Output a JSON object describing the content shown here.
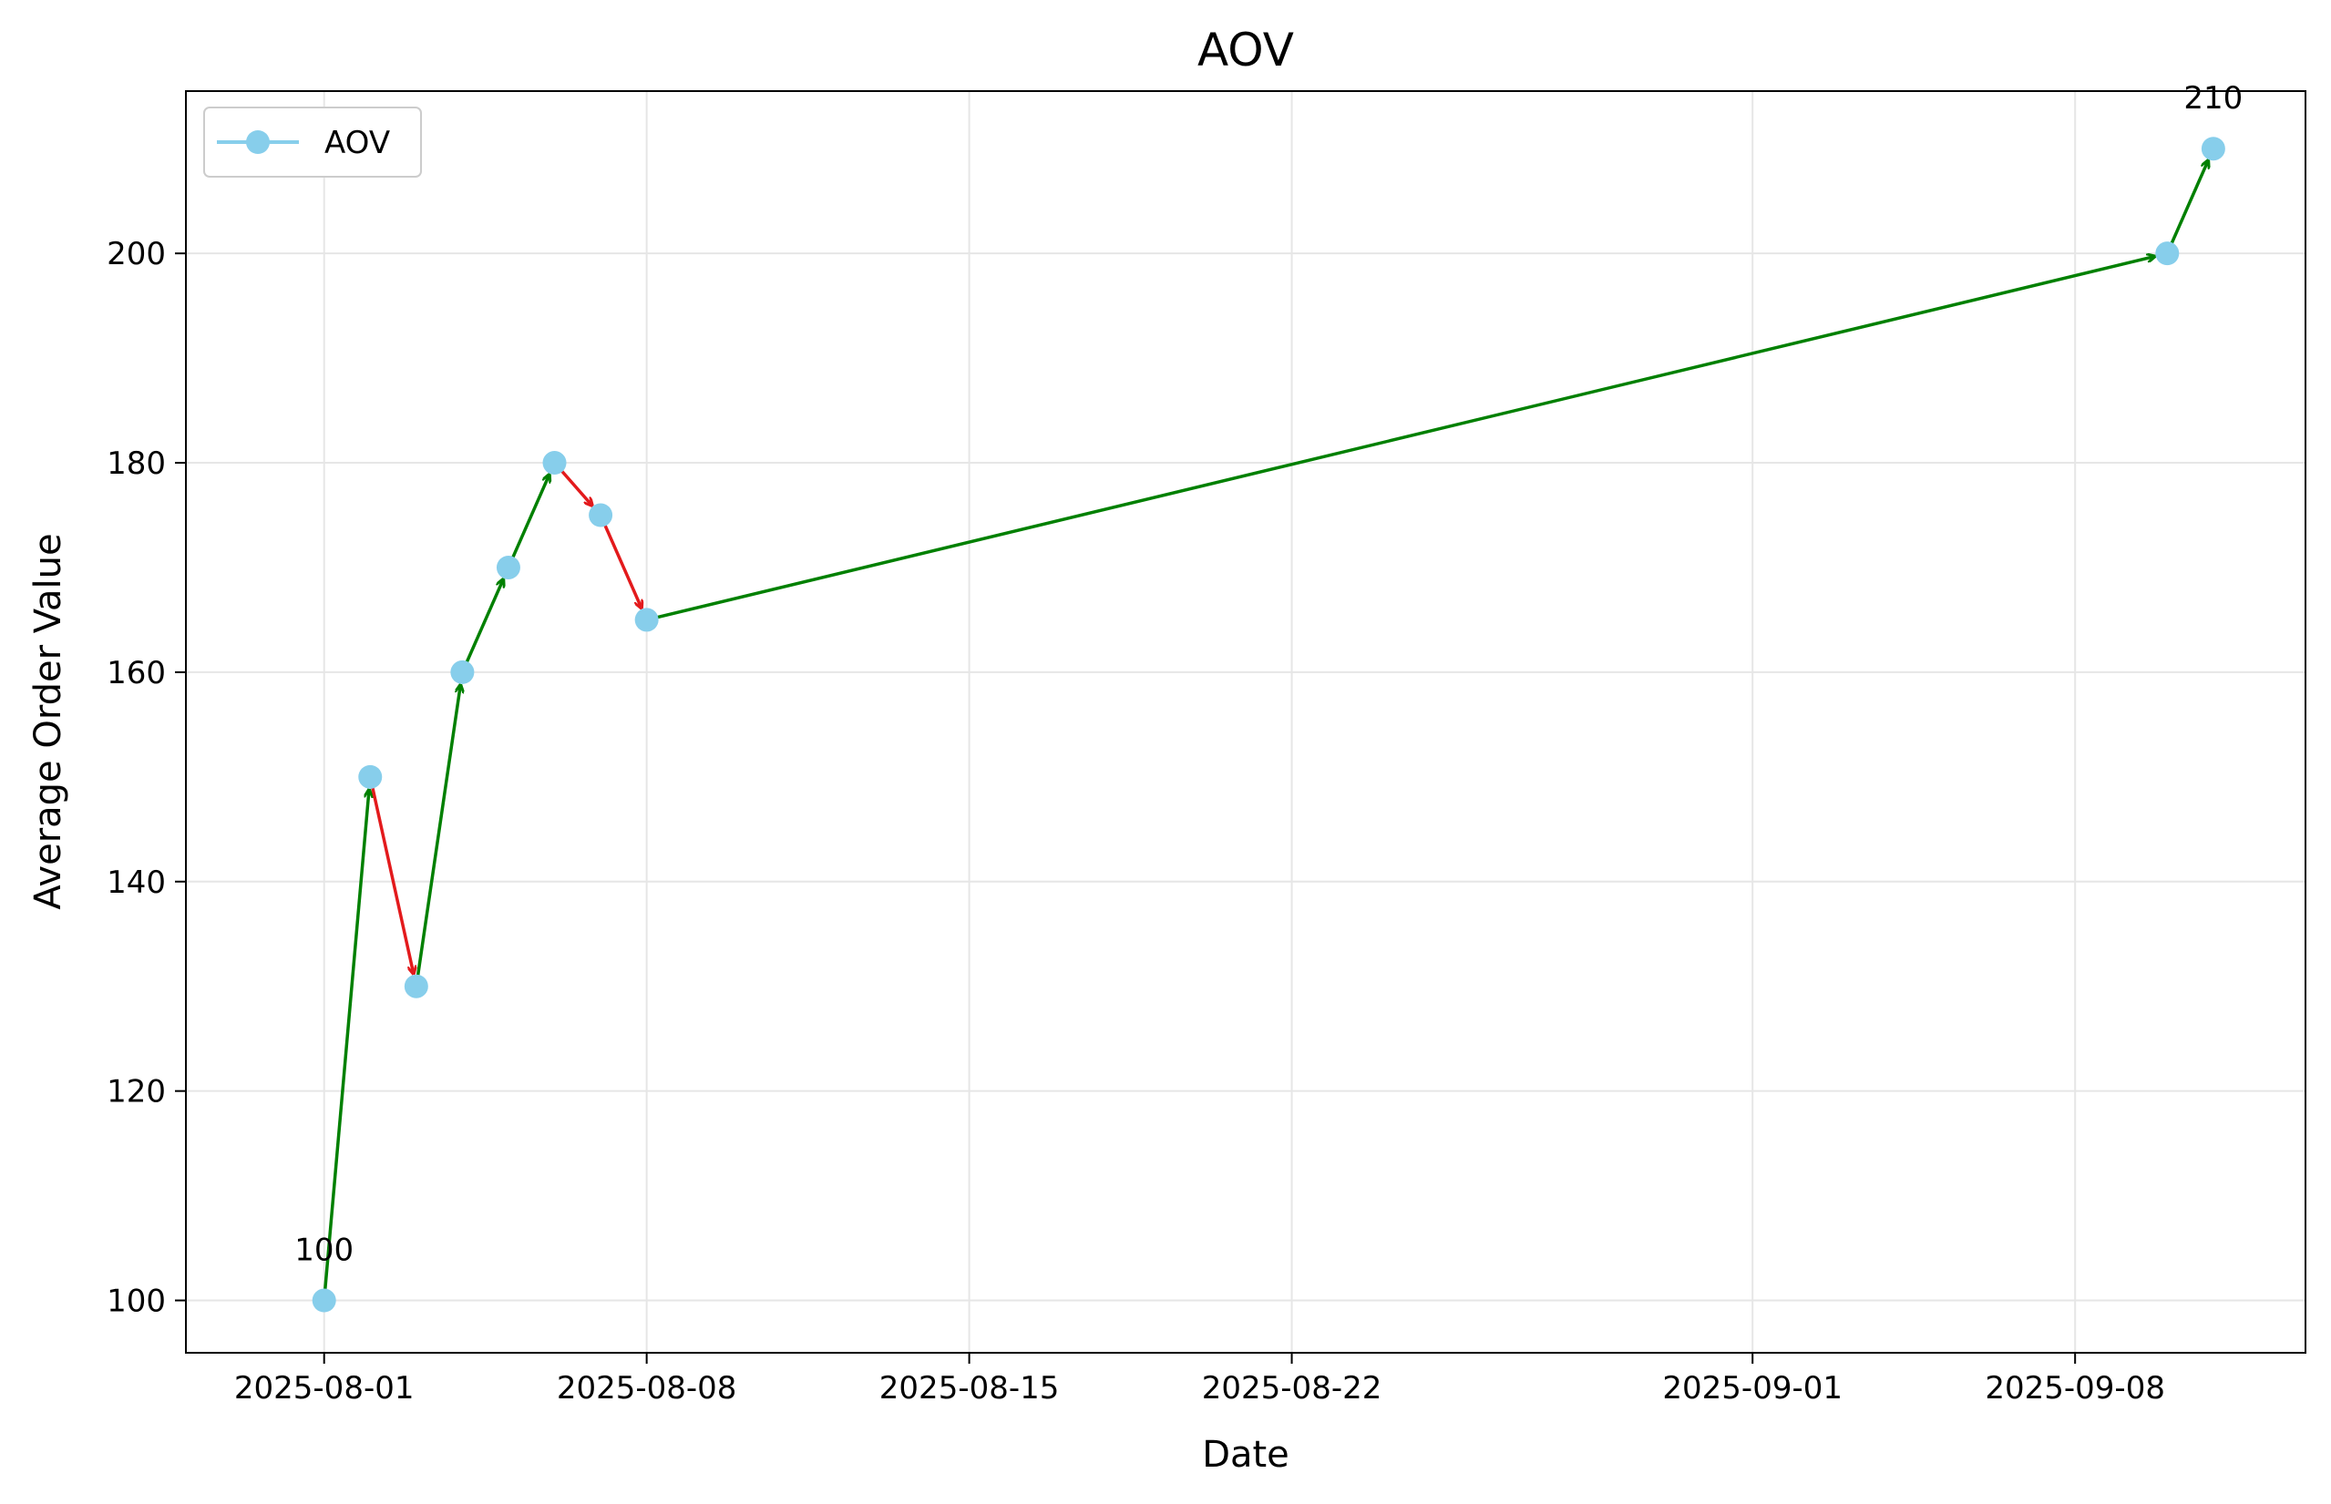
{
  "chart_data": {
    "type": "line",
    "title": "AOV",
    "xlabel": "Date",
    "ylabel": "Average Order Value",
    "x_axis_type": "date",
    "xlim": [
      "2025-07-29",
      "2025-09-13"
    ],
    "ylim": [
      95,
      215.5
    ],
    "x_ticks": [
      "2025-08-01",
      "2025-08-08",
      "2025-08-15",
      "2025-08-22",
      "2025-09-01",
      "2025-09-08"
    ],
    "y_ticks": [
      100,
      120,
      140,
      160,
      180,
      200
    ],
    "grid": true,
    "legend": {
      "placement": "upper-left",
      "entries": [
        "AOV"
      ]
    },
    "series": [
      {
        "name": "AOV",
        "color": "#87ceeb",
        "x": [
          "2025-08-01",
          "2025-08-02",
          "2025-08-03",
          "2025-08-04",
          "2025-08-05",
          "2025-08-06",
          "2025-08-07",
          "2025-08-08",
          "2025-09-10",
          "2025-09-11"
        ],
        "y": [
          100,
          150,
          130,
          160,
          170,
          180,
          175,
          165,
          200,
          210
        ]
      }
    ],
    "arrow_colors": {
      "up": "#008000",
      "down": "#e31a1c"
    },
    "annotations": [
      {
        "text": "100",
        "x": "2025-08-01",
        "y": 100
      },
      {
        "text": "210",
        "x": "2025-09-11",
        "y": 210
      }
    ]
  }
}
